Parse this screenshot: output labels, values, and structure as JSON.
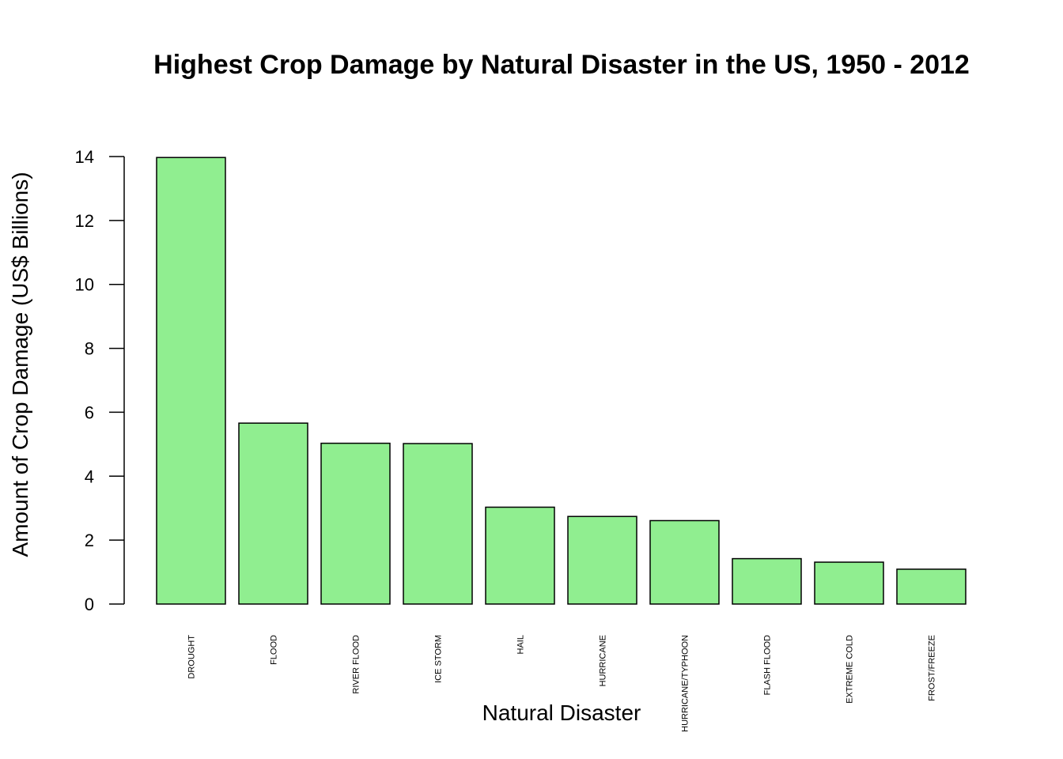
{
  "chart_data": {
    "type": "bar",
    "title": "Highest Crop Damage by Natural Disaster in the US, 1950 - 2012",
    "xlabel": "Natural Disaster",
    "ylabel": "Amount of Crop Damage (US$ Billions)",
    "categories": [
      "DROUGHT",
      "FLOOD",
      "RIVER FLOOD",
      "ICE STORM",
      "HAIL",
      "HURRICANE",
      "HURRICANE/TYPHOON",
      "FLASH FLOOD",
      "EXTREME COLD",
      "FROST/FREEZE"
    ],
    "values": [
      13.97,
      5.66,
      5.03,
      5.02,
      3.03,
      2.74,
      2.61,
      1.42,
      1.31,
      1.09
    ],
    "yticks": [
      0,
      2,
      4,
      6,
      8,
      10,
      12,
      14
    ],
    "ylim": [
      0,
      14
    ],
    "grid": false,
    "bar_color": "#90ee90",
    "bar_edge_color": "#000000"
  }
}
